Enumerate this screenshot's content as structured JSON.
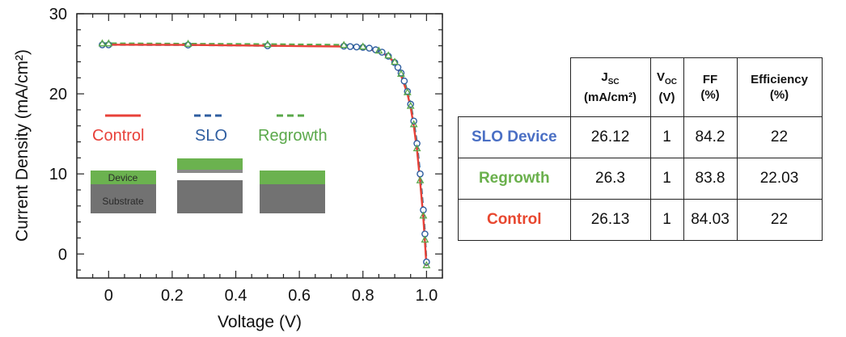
{
  "chart_data": {
    "type": "line",
    "xlabel": "Voltage (V)",
    "ylabel": "Current Density (mA/cm²)",
    "xlim": [
      -0.1,
      1.05
    ],
    "ylim": [
      -3,
      30
    ],
    "x_ticks": [
      "0",
      "0.2",
      "0.4",
      "0.6",
      "0.8",
      "1.0"
    ],
    "y_ticks": [
      "0",
      "10",
      "20",
      "30"
    ],
    "grid": false,
    "legend_position": "left inside plot",
    "series": [
      {
        "name": "Control",
        "color": "#e8413a",
        "style": "solid",
        "x": [
          0.0,
          0.25,
          0.5,
          0.74,
          0.8,
          0.85,
          0.88,
          0.9,
          0.92,
          0.94,
          0.95,
          0.96,
          0.97,
          0.98,
          0.99,
          0.995,
          1.0
        ],
        "y": [
          26.13,
          26.1,
          26.0,
          25.9,
          25.7,
          25.3,
          24.7,
          23.8,
          22.3,
          20.0,
          18.3,
          16.0,
          13.0,
          9.0,
          4.5,
          1.5,
          -1.5
        ]
      },
      {
        "name": "SLO",
        "color": "#2f5ea0",
        "style": "dashed",
        "x": [
          -0.02,
          0.0,
          0.25,
          0.5,
          0.74,
          0.76,
          0.78,
          0.8,
          0.82,
          0.84,
          0.86,
          0.88,
          0.9,
          0.91,
          0.92,
          0.93,
          0.94,
          0.95,
          0.96,
          0.97,
          0.98,
          0.99,
          0.995,
          1.0
        ],
        "y": [
          26.12,
          26.12,
          26.1,
          26.0,
          25.95,
          25.9,
          25.85,
          25.8,
          25.7,
          25.5,
          25.2,
          24.7,
          23.9,
          23.3,
          22.6,
          21.6,
          20.3,
          18.7,
          16.6,
          13.8,
          10.0,
          5.5,
          2.5,
          -1.0
        ]
      },
      {
        "name": "Regrowth",
        "color": "#5aa84a",
        "style": "dashed",
        "x": [
          -0.02,
          0.0,
          0.25,
          0.5,
          0.74,
          0.8,
          0.85,
          0.88,
          0.9,
          0.92,
          0.94,
          0.95,
          0.96,
          0.97,
          0.98,
          0.99,
          0.995,
          1.0
        ],
        "y": [
          26.3,
          26.3,
          26.25,
          26.2,
          26.1,
          25.9,
          25.4,
          24.8,
          24.0,
          22.5,
          20.2,
          18.5,
          16.2,
          13.2,
          9.2,
          4.8,
          1.8,
          -1.4
        ]
      }
    ]
  },
  "legend": {
    "control": {
      "label": "Control",
      "color": "#e8413a"
    },
    "slo": {
      "label": "SLO",
      "color": "#2f5ea0"
    },
    "regrowth": {
      "label": "Regrowth",
      "color": "#5aa84a"
    }
  },
  "schematic": {
    "device_label": "Device",
    "substrate_label": "Substrate",
    "device_color": "#6bb24f",
    "substrate_color": "#727272"
  },
  "table": {
    "headers": [
      {
        "main": "J",
        "sub": "SC",
        "unit": "(mA/cm²)"
      },
      {
        "main": "V",
        "sub": "OC",
        "unit": "(V)"
      },
      {
        "main": "FF",
        "sub": "",
        "unit": "(%)"
      },
      {
        "main": "Efficiency",
        "sub": "",
        "unit": "(%)"
      }
    ],
    "rows": [
      {
        "name": "SLO Device",
        "color": "#4a6fc4",
        "jsc": "26.12",
        "voc": "1",
        "ff": "84.2",
        "eff": "22"
      },
      {
        "name": "Regrowth",
        "color": "#6ab04c",
        "jsc": "26.3",
        "voc": "1",
        "ff": "83.8",
        "eff": "22.03"
      },
      {
        "name": "Control",
        "color": "#e8472f",
        "jsc": "26.13",
        "voc": "1",
        "ff": "84.03",
        "eff": "22"
      }
    ]
  }
}
